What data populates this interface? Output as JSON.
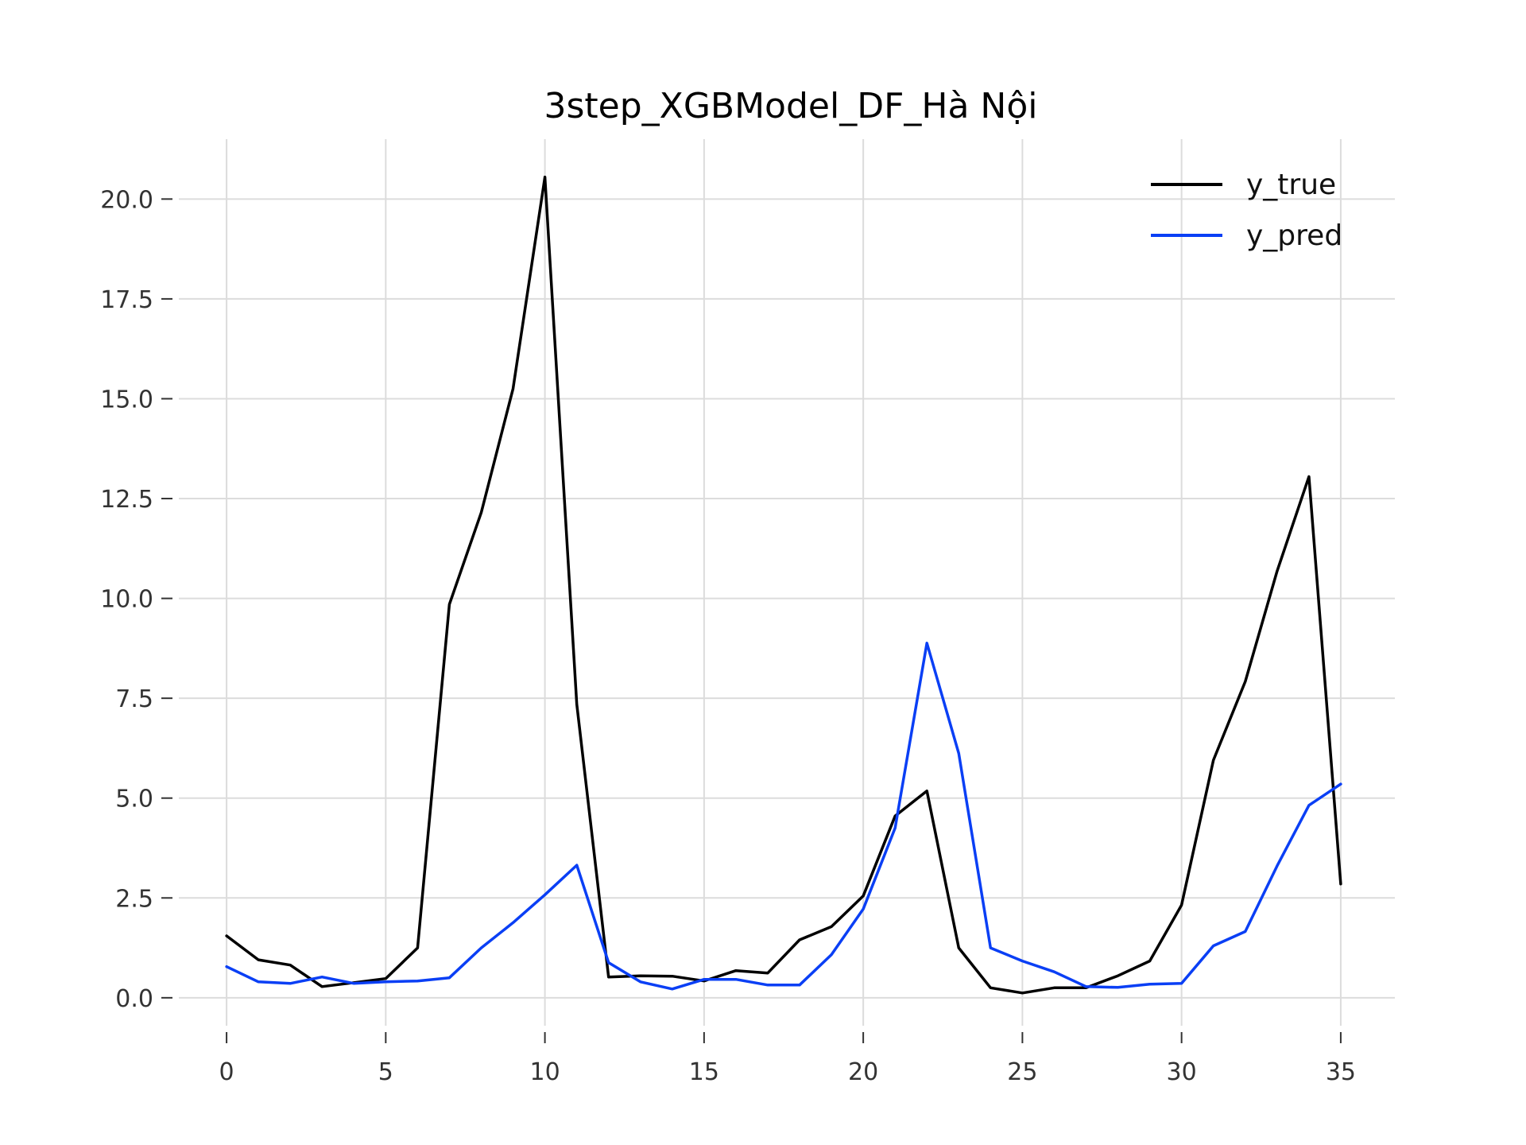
{
  "chart_data": {
    "type": "line",
    "title": "3step_XGBModel_DF_Hà Nội",
    "xlabel": "",
    "ylabel": "",
    "xlim": [
      -1.5,
      36.7
    ],
    "ylim": [
      -0.7,
      21.5
    ],
    "xticks": [
      0,
      5,
      10,
      15,
      20,
      25,
      30,
      35
    ],
    "xtick_labels": [
      "0",
      "5",
      "10",
      "15",
      "20",
      "25",
      "30",
      "35"
    ],
    "yticks": [
      0,
      2.5,
      5,
      7.5,
      10,
      12.5,
      15,
      17.5,
      20
    ],
    "ytick_labels": [
      "0.0",
      "2.5",
      "5.0",
      "7.5",
      "10.0",
      "12.5",
      "15.0",
      "17.5",
      "20.0"
    ],
    "grid": true,
    "legend_position": "top-right",
    "x": [
      0,
      1,
      2,
      3,
      4,
      5,
      6,
      7,
      8,
      9,
      10,
      11,
      12,
      13,
      14,
      15,
      16,
      17,
      18,
      19,
      20,
      21,
      22,
      23,
      24,
      25,
      26,
      27,
      28,
      29,
      30,
      31,
      32,
      33,
      34,
      35
    ],
    "series": [
      {
        "name": "y_true",
        "color": "#000000",
        "values": [
          1.55,
          0.95,
          0.82,
          0.28,
          0.38,
          0.48,
          1.25,
          9.85,
          12.15,
          15.25,
          20.55,
          7.35,
          0.52,
          0.55,
          0.54,
          0.42,
          0.68,
          0.62,
          1.45,
          1.78,
          2.55,
          4.55,
          5.18,
          1.25,
          0.25,
          0.12,
          0.25,
          0.25,
          0.55,
          0.92,
          2.32,
          5.95,
          7.92,
          10.68,
          13.05,
          2.85
        ]
      },
      {
        "name": "y_pred",
        "color": "#0a3ff5",
        "values": [
          0.78,
          0.4,
          0.36,
          0.52,
          0.36,
          0.4,
          0.42,
          0.5,
          1.25,
          1.88,
          2.58,
          3.32,
          0.88,
          0.4,
          0.22,
          0.46,
          0.46,
          0.32,
          0.32,
          1.08,
          2.22,
          4.25,
          8.88,
          6.12,
          1.25,
          0.92,
          0.65,
          0.28,
          0.26,
          0.34,
          0.36,
          1.3,
          1.66,
          3.3,
          4.82,
          5.35
        ]
      }
    ]
  }
}
